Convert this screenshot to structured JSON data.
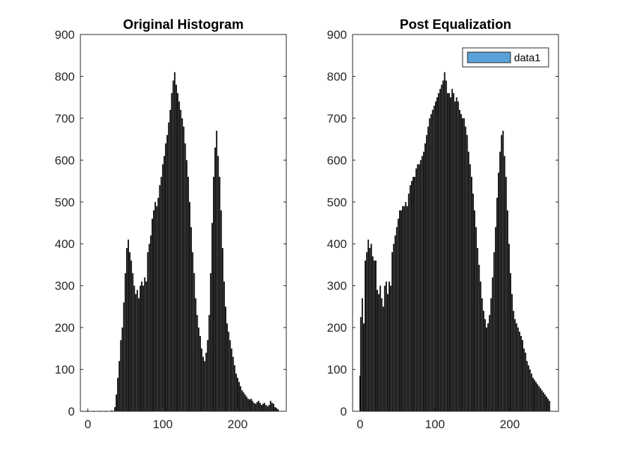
{
  "chart_data": [
    {
      "type": "bar",
      "title": "Original Histogram",
      "xlabel": "",
      "ylabel": "",
      "xlim": [
        -10,
        265
      ],
      "ylim": [
        0,
        900
      ],
      "xticks": [
        0,
        100,
        200
      ],
      "yticks": [
        0,
        100,
        200,
        300,
        400,
        500,
        600,
        700,
        800,
        900
      ],
      "grid": false,
      "bar_color": "#000000",
      "x": [
        0,
        8,
        16,
        24,
        32,
        36,
        38,
        40,
        42,
        44,
        46,
        48,
        50,
        52,
        54,
        56,
        58,
        60,
        62,
        64,
        66,
        68,
        70,
        72,
        74,
        76,
        78,
        80,
        82,
        84,
        86,
        88,
        90,
        92,
        94,
        96,
        98,
        100,
        102,
        104,
        106,
        108,
        110,
        112,
        114,
        116,
        118,
        120,
        122,
        124,
        126,
        128,
        130,
        132,
        134,
        136,
        138,
        140,
        142,
        144,
        146,
        148,
        150,
        152,
        154,
        156,
        158,
        160,
        162,
        164,
        166,
        168,
        170,
        172,
        174,
        176,
        178,
        180,
        182,
        184,
        186,
        188,
        190,
        192,
        194,
        196,
        198,
        200,
        202,
        204,
        206,
        208,
        210,
        212,
        214,
        216,
        218,
        220,
        222,
        224,
        226,
        228,
        230,
        232,
        234,
        236,
        238,
        240,
        242,
        244,
        246,
        248,
        250,
        252,
        254
      ],
      "values": [
        0,
        0,
        0,
        0,
        2,
        10,
        40,
        80,
        120,
        170,
        200,
        260,
        330,
        390,
        410,
        380,
        360,
        330,
        300,
        280,
        290,
        270,
        300,
        310,
        300,
        320,
        310,
        380,
        400,
        420,
        460,
        480,
        500,
        490,
        510,
        540,
        560,
        590,
        610,
        640,
        660,
        690,
        720,
        760,
        790,
        810,
        780,
        760,
        740,
        720,
        700,
        680,
        640,
        600,
        560,
        500,
        440,
        380,
        330,
        270,
        230,
        200,
        180,
        150,
        130,
        120,
        140,
        170,
        230,
        330,
        450,
        560,
        630,
        670,
        610,
        560,
        480,
        390,
        310,
        250,
        210,
        190,
        170,
        150,
        130,
        110,
        90,
        80,
        70,
        60,
        50,
        45,
        40,
        35,
        30,
        28,
        30,
        25,
        20,
        18,
        22,
        25,
        20,
        15,
        18,
        20,
        15,
        12,
        15,
        25,
        20,
        18,
        10,
        8,
        5
      ]
    },
    {
      "type": "bar",
      "title": "Post Equalization",
      "xlabel": "",
      "ylabel": "",
      "xlim": [
        -10,
        265
      ],
      "ylim": [
        0,
        900
      ],
      "xticks": [
        0,
        100,
        200
      ],
      "yticks": [
        0,
        100,
        200,
        300,
        400,
        500,
        600,
        700,
        800,
        900
      ],
      "grid": false,
      "bar_color": "#000000",
      "legend": {
        "entries": [
          "data1"
        ],
        "position": "top-right",
        "swatch_color": "#5aa1d8"
      },
      "x": [
        0,
        1,
        3,
        5,
        7,
        9,
        11,
        13,
        15,
        17,
        19,
        21,
        23,
        25,
        27,
        29,
        31,
        33,
        35,
        37,
        39,
        41,
        43,
        45,
        47,
        49,
        51,
        53,
        55,
        57,
        59,
        61,
        63,
        65,
        67,
        69,
        71,
        73,
        75,
        77,
        79,
        81,
        83,
        85,
        87,
        89,
        91,
        93,
        95,
        97,
        99,
        101,
        103,
        105,
        107,
        109,
        111,
        113,
        115,
        117,
        119,
        121,
        123,
        125,
        127,
        129,
        131,
        133,
        135,
        137,
        139,
        141,
        143,
        145,
        147,
        149,
        151,
        153,
        155,
        157,
        159,
        161,
        163,
        165,
        167,
        169,
        171,
        173,
        175,
        177,
        179,
        181,
        183,
        185,
        187,
        189,
        191,
        193,
        195,
        197,
        199,
        201,
        203,
        205,
        207,
        209,
        211,
        213,
        215,
        217,
        219,
        221,
        223,
        225,
        227,
        229,
        231,
        233,
        235,
        237,
        239,
        241,
        243,
        245,
        247,
        249,
        251,
        253
      ],
      "values": [
        85,
        225,
        270,
        210,
        360,
        380,
        410,
        390,
        400,
        370,
        360,
        360,
        290,
        280,
        300,
        270,
        250,
        300,
        310,
        280,
        310,
        300,
        380,
        400,
        420,
        440,
        460,
        480,
        480,
        490,
        490,
        500,
        490,
        520,
        540,
        550,
        560,
        560,
        580,
        590,
        590,
        600,
        610,
        620,
        640,
        660,
        680,
        700,
        710,
        720,
        730,
        740,
        750,
        760,
        770,
        780,
        790,
        810,
        790,
        760,
        760,
        750,
        770,
        760,
        740,
        750,
        740,
        720,
        710,
        700,
        700,
        680,
        660,
        620,
        590,
        560,
        520,
        480,
        440,
        390,
        350,
        310,
        270,
        240,
        220,
        200,
        210,
        230,
        270,
        320,
        380,
        440,
        510,
        570,
        620,
        660,
        670,
        610,
        560,
        480,
        400,
        330,
        280,
        240,
        220,
        210,
        200,
        190,
        180,
        170,
        150,
        140,
        120,
        110,
        100,
        90,
        80,
        75,
        70,
        65,
        60,
        55,
        50,
        45,
        40,
        35,
        30,
        25
      ]
    }
  ]
}
